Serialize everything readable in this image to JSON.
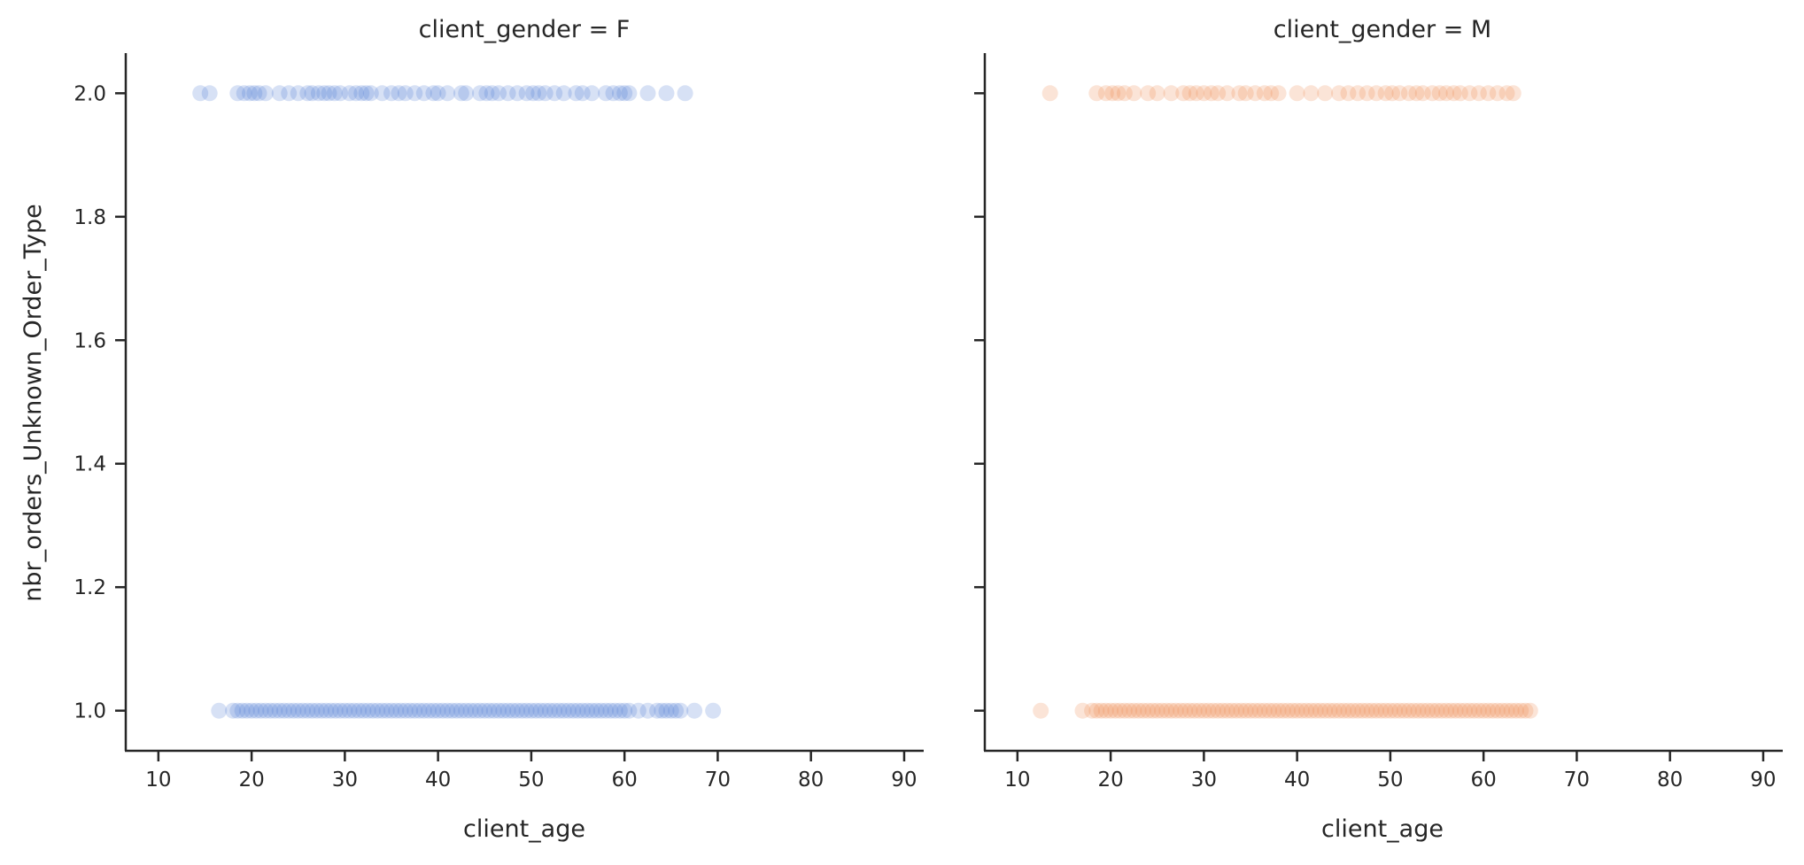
{
  "chart_data": {
    "type": "scatter",
    "ylabel": "nbr_orders_Unknown_Order_Type",
    "ylim": [
      0.935,
      2.065
    ],
    "yticks": [
      "1.0",
      "1.2",
      "1.4",
      "1.6",
      "1.8",
      "2.0"
    ],
    "ytick_values": [
      1.0,
      1.2,
      1.4,
      1.6,
      1.8,
      2.0
    ],
    "xlim": [
      6.5,
      92
    ],
    "xticks": [
      "10",
      "20",
      "30",
      "40",
      "50",
      "60",
      "70",
      "80",
      "90"
    ],
    "xtick_values": [
      10,
      20,
      30,
      40,
      50,
      60,
      70,
      80,
      90
    ],
    "grid": false,
    "panels": [
      {
        "title": "client_gender = F",
        "xlabel": "client_age",
        "color": "#4878d0",
        "series": [
          {
            "y": 2.0,
            "x": [
              14.5,
              15.5,
              18.5,
              19.2,
              19.8,
              20.3,
              20.8,
              21.5,
              23,
              24,
              25,
              26,
              26.5,
              27.2,
              27.8,
              28.3,
              28.9,
              29.5,
              30.5,
              31.2,
              31.8,
              32.3,
              32.8,
              34,
              35,
              35.8,
              36.5,
              37.5,
              38.5,
              39.5,
              40,
              41,
              42.5,
              43,
              44.5,
              45.2,
              45.8,
              46.5,
              47.5,
              48.5,
              49.5,
              50.2,
              50.8,
              51.5,
              52.5,
              53.5,
              54.8,
              55.5,
              56.5,
              58,
              58.8,
              59.5,
              60,
              60.5,
              62.5,
              64.5,
              66.5
            ]
          },
          {
            "y": 1.0,
            "x": [
              16.5,
              18,
              18.5,
              19,
              19.5,
              20,
              20.5,
              21,
              21.5,
              22,
              22.5,
              23,
              23.5,
              24,
              24.5,
              25,
              25.5,
              26,
              26.5,
              27,
              27.5,
              28,
              28.5,
              29,
              29.5,
              30,
              30.5,
              31,
              31.5,
              32,
              32.5,
              33,
              33.5,
              34,
              34.5,
              35,
              35.5,
              36,
              36.5,
              37,
              37.5,
              38,
              38.5,
              39,
              39.5,
              40,
              40.5,
              41,
              41.5,
              42,
              42.5,
              43,
              43.5,
              44,
              44.5,
              45,
              45.5,
              46,
              46.5,
              47,
              47.5,
              48,
              48.5,
              49,
              49.5,
              50,
              50.5,
              51,
              51.5,
              52,
              52.5,
              53,
              53.5,
              54,
              54.5,
              55,
              55.5,
              56,
              56.5,
              57,
              57.5,
              58,
              58.5,
              59,
              59.5,
              60,
              60.5,
              61.5,
              62.5,
              63.5,
              64,
              64.5,
              65,
              65.5,
              66,
              67.5,
              69.5
            ]
          }
        ]
      },
      {
        "title": "client_gender = M",
        "xlabel": "client_age",
        "color": "#ee854a",
        "series": [
          {
            "y": 2.0,
            "x": [
              13.5,
              18.5,
              19.5,
              20.2,
              20.8,
              21.5,
              22.5,
              24,
              25,
              26.5,
              27.8,
              28.5,
              29.2,
              30,
              30.8,
              31.5,
              32.5,
              33.8,
              34.5,
              35.5,
              36.5,
              37.2,
              38,
              40,
              41.5,
              43,
              44.5,
              45.5,
              46.5,
              47.5,
              48.5,
              49.5,
              50.2,
              51,
              52,
              52.8,
              53.5,
              54.5,
              55.3,
              56,
              56.8,
              57.5,
              58.5,
              59.5,
              60.5,
              61.5,
              62.5,
              63.2
            ]
          },
          {
            "y": 1.0,
            "x": [
              12.5,
              17,
              18,
              18.5,
              19,
              19.5,
              20,
              20.5,
              21,
              21.5,
              22,
              22.5,
              23,
              23.5,
              24,
              24.5,
              25,
              25.5,
              26,
              26.5,
              27,
              27.5,
              28,
              28.5,
              29,
              29.5,
              30,
              30.5,
              31,
              31.5,
              32,
              32.5,
              33,
              33.5,
              34,
              34.5,
              35,
              35.5,
              36,
              36.5,
              37,
              37.5,
              38,
              38.5,
              39,
              39.5,
              40,
              40.5,
              41,
              41.5,
              42,
              42.5,
              43,
              43.5,
              44,
              44.5,
              45,
              45.5,
              46,
              46.5,
              47,
              47.5,
              48,
              48.5,
              49,
              49.5,
              50,
              50.5,
              51,
              51.5,
              52,
              52.5,
              53,
              53.5,
              54,
              54.5,
              55,
              55.5,
              56,
              56.5,
              57,
              57.5,
              58,
              58.5,
              59,
              59.5,
              60,
              60.5,
              61,
              61.5,
              62,
              62.5,
              63,
              63.5,
              64,
              64.5,
              65
            ]
          }
        ]
      }
    ]
  }
}
